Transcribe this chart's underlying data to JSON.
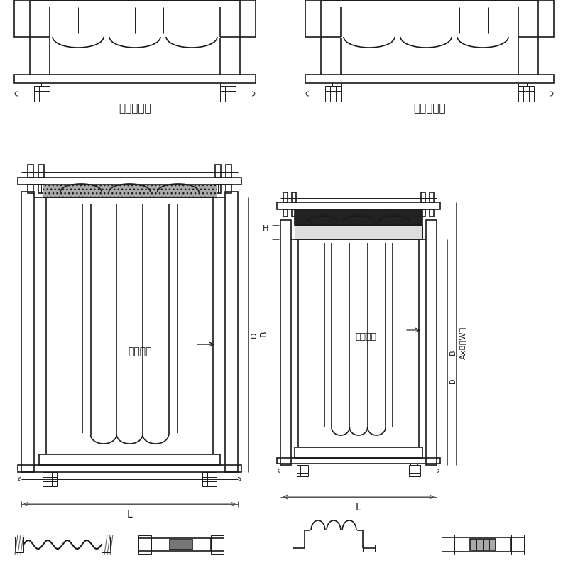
{
  "bg_color": "#ffffff",
  "line_color": "#1a1a1a",
  "label1": "法兰连接式",
  "label2": "接管连接式",
  "text1": "介质流向",
  "text2": "介质流向",
  "dim_L": "L",
  "dim_B": "B",
  "dim_D": "D",
  "dim_AxB": "AxB（W）",
  "dim_H": "H",
  "dim_L2": "L"
}
